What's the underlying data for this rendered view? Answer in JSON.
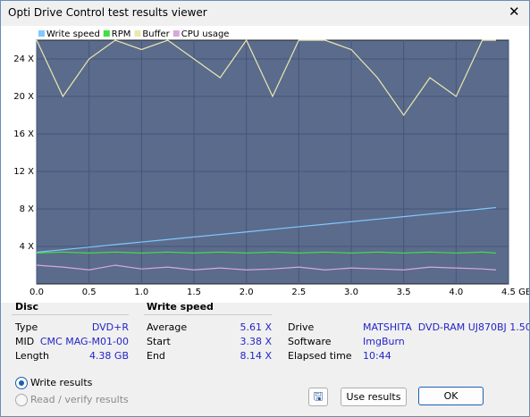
{
  "window": {
    "title": "Opti Drive Control test results viewer"
  },
  "chart_data": {
    "type": "line",
    "x": [
      0,
      0.25,
      0.5,
      0.75,
      1.0,
      1.25,
      1.5,
      1.75,
      2.0,
      2.25,
      2.5,
      2.75,
      3.0,
      3.25,
      3.5,
      3.75,
      4.0,
      4.25,
      4.38
    ],
    "series": [
      {
        "name": "Write speed",
        "color": "#80c8ff",
        "values": [
          3.38,
          3.65,
          3.92,
          4.2,
          4.47,
          4.74,
          5.01,
          5.28,
          5.55,
          5.83,
          6.1,
          6.37,
          6.64,
          6.91,
          7.18,
          7.46,
          7.73,
          8.0,
          8.14
        ]
      },
      {
        "name": "RPM",
        "color": "#40e040",
        "values": [
          3.3,
          3.4,
          3.3,
          3.4,
          3.3,
          3.4,
          3.3,
          3.4,
          3.3,
          3.4,
          3.3,
          3.4,
          3.3,
          3.4,
          3.3,
          3.4,
          3.3,
          3.4,
          3.3
        ]
      },
      {
        "name": "Buffer",
        "color": "#e8e8b0",
        "values": [
          26,
          20,
          24,
          26,
          25,
          26,
          24,
          22,
          26,
          20,
          26,
          26,
          25,
          22,
          18,
          22,
          20,
          26,
          26
        ]
      },
      {
        "name": "CPU usage",
        "color": "#d8a8d8",
        "values": [
          2,
          1.8,
          1.5,
          2,
          1.6,
          1.8,
          1.5,
          1.7,
          1.5,
          1.6,
          1.8,
          1.5,
          1.7,
          1.6,
          1.5,
          1.8,
          1.7,
          1.6,
          1.5
        ]
      }
    ],
    "xlim": [
      0,
      4.5
    ],
    "ylim": [
      0,
      26
    ],
    "xticks": [
      {
        "value": 0,
        "label": "0.0"
      },
      0.5,
      {
        "value": 1,
        "label": "1.0"
      },
      1.5,
      {
        "value": 2,
        "label": "2.0"
      },
      2.5,
      {
        "value": 3,
        "label": "3.0"
      },
      3.5,
      {
        "value": 4,
        "label": "4.0"
      },
      {
        "value": 4.5,
        "label": "4.5 GB"
      }
    ],
    "yticks": [
      {
        "value": 4,
        "label": "4 X"
      },
      {
        "value": 8,
        "label": "8 X"
      },
      {
        "value": 12,
        "label": "12 X"
      },
      {
        "value": 16,
        "label": "16 X"
      },
      {
        "value": 20,
        "label": "20 X"
      },
      {
        "value": 24,
        "label": "24 X"
      }
    ],
    "grid": true
  },
  "disc": {
    "heading": "Disc",
    "rows": [
      [
        "Type",
        "DVD+R"
      ],
      [
        "MID",
        "CMC MAG-M01-00"
      ],
      [
        "Length",
        "4.38 GB"
      ]
    ]
  },
  "write_speed": {
    "heading": "Write speed",
    "rows": [
      [
        "Average",
        "5.61 X"
      ],
      [
        "Start",
        "3.38 X"
      ],
      [
        "End",
        "8.14 X"
      ]
    ]
  },
  "drive": {
    "rows": [
      [
        "Drive",
        "MATSHITA  DVD-RAM UJ870BJ 1.50"
      ],
      [
        "Software",
        "ImgBurn"
      ],
      [
        "Elapsed time",
        "10:44"
      ]
    ]
  },
  "options": [
    "Write results",
    "Read / verify results"
  ],
  "buttons": [
    "Use results",
    "OK"
  ]
}
